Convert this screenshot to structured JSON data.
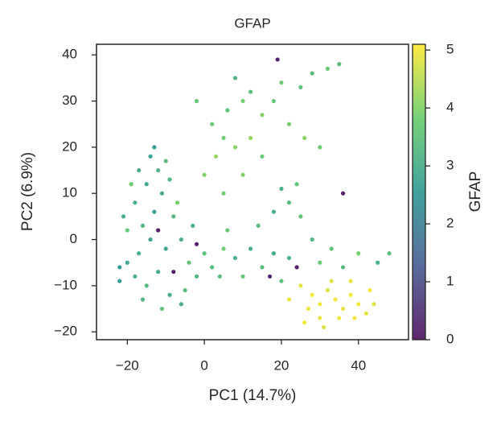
{
  "chart_data": {
    "type": "scatter",
    "title": "GFAP",
    "x_label": "PC1 (14.7%)",
    "y_label": "PC2 (6.9%)",
    "colorbar_label": "GFAP",
    "colormap": "viridis",
    "x": [
      -20,
      -18,
      -22,
      -15,
      -12,
      -17,
      -14,
      -16,
      -13,
      -18,
      -15,
      -12,
      -14,
      -10,
      -11,
      -8,
      -6,
      -4,
      -2,
      0,
      -9,
      -5,
      -20,
      -22,
      -19,
      -10,
      -7,
      -3,
      2,
      5,
      -16,
      -11,
      -6,
      -13,
      -9,
      -21,
      -17,
      -8,
      -2,
      -12,
      4,
      8,
      10,
      12,
      15,
      18,
      20,
      22,
      6,
      14,
      18,
      22,
      25,
      28,
      30,
      33,
      36,
      40,
      45,
      48,
      20,
      24,
      17,
      24,
      0,
      3,
      5,
      8,
      2,
      6,
      10,
      12,
      15,
      18,
      20,
      25,
      28,
      32,
      35,
      22,
      26,
      30,
      12,
      15,
      10,
      5,
      8,
      -2,
      19,
      36,
      25,
      28,
      30,
      32,
      34,
      36,
      38,
      40,
      42,
      44,
      35,
      30,
      27,
      33,
      38,
      43,
      31,
      22,
      26,
      39
    ],
    "y": [
      -5,
      -8,
      -6,
      -10,
      -7,
      -3,
      0,
      3,
      6,
      8,
      12,
      15,
      18,
      17,
      10,
      5,
      0,
      -5,
      -8,
      -3,
      -12,
      -11,
      2,
      -9,
      12,
      -2,
      8,
      3,
      -6,
      -2,
      -13,
      -15,
      -14,
      20,
      13,
      5,
      15,
      -7,
      -1,
      2,
      -8,
      -4,
      -8,
      -2,
      -6,
      -3,
      -9,
      -4,
      2,
      3,
      6,
      8,
      5,
      0,
      -5,
      -2,
      -6,
      -3,
      -5,
      -3,
      11,
      12,
      -8,
      -6,
      14,
      18,
      22,
      20,
      25,
      28,
      30,
      32,
      27,
      30,
      34,
      33,
      36,
      37,
      38,
      25,
      22,
      20,
      22,
      18,
      14,
      10,
      35,
      30,
      39,
      10,
      -10,
      -12,
      -14,
      -11,
      -13,
      -15,
      -12,
      -14,
      -16,
      -14,
      -17,
      -17,
      -15,
      -9,
      -9,
      -11,
      -19,
      -13,
      -18,
      -17
    ],
    "c": [
      2.8,
      3.1,
      2.5,
      3.3,
      2.9,
      3.0,
      2.7,
      3.2,
      2.6,
      3.0,
      2.8,
      3.1,
      2.7,
      3.4,
      2.9,
      3.3,
      3.0,
      3.6,
      3.2,
      3.5,
      3.0,
      3.4,
      3.7,
      2.6,
      3.8,
      2.8,
      3.9,
      3.1,
      3.3,
      3.8,
      3.2,
      3.5,
      3.0,
      2.5,
      3.2,
      3.0,
      2.9,
      0.1,
      0.2,
      0.1,
      3.4,
      3.1,
      3.6,
      3.0,
      3.3,
      2.9,
      3.5,
      3.2,
      3.7,
      3.4,
      3.0,
      3.3,
      3.6,
      3.2,
      3.8,
      3.5,
      3.3,
      3.9,
      3.0,
      3.4,
      3.1,
      3.5,
      0.2,
      0.1,
      4.0,
      4.2,
      3.8,
      4.1,
      3.7,
      3.5,
      3.9,
      3.4,
      4.0,
      3.6,
      3.8,
      3.5,
      3.3,
      3.7,
      3.4,
      3.9,
      4.1,
      3.8,
      4.2,
      3.7,
      4.0,
      3.8,
      3.2,
      3.6,
      0.2,
      0.1,
      4.9,
      5.0,
      5.0,
      4.8,
      5.0,
      4.9,
      5.0,
      5.0,
      4.9,
      4.8,
      5.0,
      4.9,
      5.0,
      4.8,
      4.9,
      5.0,
      4.8,
      4.9,
      5.0,
      5.0
    ],
    "xlim": [
      -28,
      53
    ],
    "ylim": [
      -21.7,
      42.3
    ],
    "clim": [
      0,
      5.1
    ],
    "xticks": [
      {
        "value": -20,
        "label": "−20"
      },
      0,
      20,
      40
    ],
    "yticks": [
      {
        "value": -20,
        "label": "−20"
      },
      {
        "value": -10,
        "label": "−10"
      },
      0,
      10,
      20,
      30,
      40
    ],
    "cticks": [
      0,
      1,
      2,
      3,
      4,
      5
    ]
  }
}
